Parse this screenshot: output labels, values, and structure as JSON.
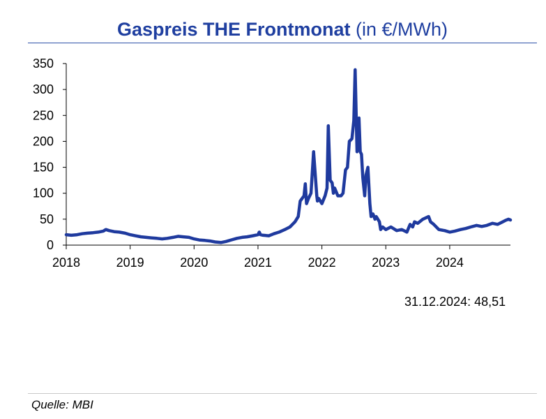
{
  "title": {
    "main": "Gaspreis THE Frontmonat",
    "unit": "(in €/MWh)"
  },
  "annotation": "31.12.2024: 48,51",
  "source": "Quelle: MBI",
  "colors": {
    "line": "#1f3a9e",
    "title": "#1f3fa0",
    "axis": "#000000"
  },
  "chart_data": {
    "type": "line",
    "title": "Gaspreis THE Frontmonat (in €/MWh)",
    "xlabel": "",
    "ylabel": "",
    "xlim": [
      2018.0,
      2024.95
    ],
    "ylim": [
      0,
      350
    ],
    "yticks": [
      0,
      50,
      100,
      150,
      200,
      250,
      300,
      350
    ],
    "xticks": [
      2018,
      2019,
      2020,
      2021,
      2022,
      2023,
      2024
    ],
    "grid": false,
    "legend": "none",
    "series": [
      {
        "name": "Gaspreis THE Frontmonat",
        "x": [
          2018.0,
          2018.08,
          2018.17,
          2018.25,
          2018.33,
          2018.42,
          2018.5,
          2018.58,
          2018.62,
          2018.67,
          2018.75,
          2018.83,
          2018.92,
          2019.0,
          2019.08,
          2019.17,
          2019.25,
          2019.33,
          2019.42,
          2019.5,
          2019.58,
          2019.67,
          2019.75,
          2019.83,
          2019.92,
          2020.0,
          2020.08,
          2020.17,
          2020.25,
          2020.33,
          2020.42,
          2020.5,
          2020.58,
          2020.67,
          2020.75,
          2020.83,
          2020.92,
          2021.0,
          2021.02,
          2021.04,
          2021.08,
          2021.17,
          2021.25,
          2021.33,
          2021.42,
          2021.5,
          2021.58,
          2021.63,
          2021.66,
          2021.72,
          2021.74,
          2021.76,
          2021.79,
          2021.83,
          2021.87,
          2021.92,
          2021.93,
          2021.95,
          2022.0,
          2022.05,
          2022.08,
          2022.1,
          2022.13,
          2022.16,
          2022.18,
          2022.2,
          2022.25,
          2022.3,
          2022.33,
          2022.37,
          2022.4,
          2022.43,
          2022.47,
          2022.5,
          2022.52,
          2022.55,
          2022.58,
          2022.6,
          2022.62,
          2022.64,
          2022.67,
          2022.69,
          2022.72,
          2022.75,
          2022.77,
          2022.8,
          2022.83,
          2022.85,
          2022.9,
          2022.92,
          2022.95,
          2023.0,
          2023.08,
          2023.17,
          2023.25,
          2023.33,
          2023.38,
          2023.42,
          2023.45,
          2023.5,
          2023.58,
          2023.67,
          2023.7,
          2023.75,
          2023.83,
          2023.92,
          2024.0,
          2024.08,
          2024.17,
          2024.25,
          2024.33,
          2024.42,
          2024.5,
          2024.58,
          2024.67,
          2024.75,
          2024.83,
          2024.88,
          2024.92,
          2024.95
        ],
        "values": [
          20,
          19,
          20,
          22,
          23,
          24,
          25,
          27,
          30,
          28,
          26,
          25,
          23,
          20,
          18,
          16,
          15,
          14,
          13,
          12,
          13,
          15,
          17,
          16,
          15,
          12,
          10,
          9,
          8,
          6,
          5,
          7,
          10,
          13,
          15,
          16,
          18,
          20,
          25,
          20,
          19,
          18,
          22,
          25,
          30,
          35,
          45,
          55,
          85,
          95,
          118,
          80,
          90,
          100,
          180,
          95,
          85,
          90,
          80,
          95,
          110,
          230,
          125,
          120,
          100,
          110,
          95,
          95,
          100,
          145,
          150,
          200,
          205,
          240,
          338,
          180,
          245,
          180,
          175,
          130,
          95,
          135,
          150,
          80,
          55,
          60,
          50,
          55,
          45,
          30,
          35,
          30,
          35,
          28,
          30,
          25,
          40,
          35,
          45,
          42,
          50,
          55,
          45,
          40,
          30,
          28,
          25,
          27,
          30,
          32,
          35,
          38,
          36,
          38,
          42,
          40,
          45,
          48,
          50,
          48.51
        ]
      }
    ]
  }
}
